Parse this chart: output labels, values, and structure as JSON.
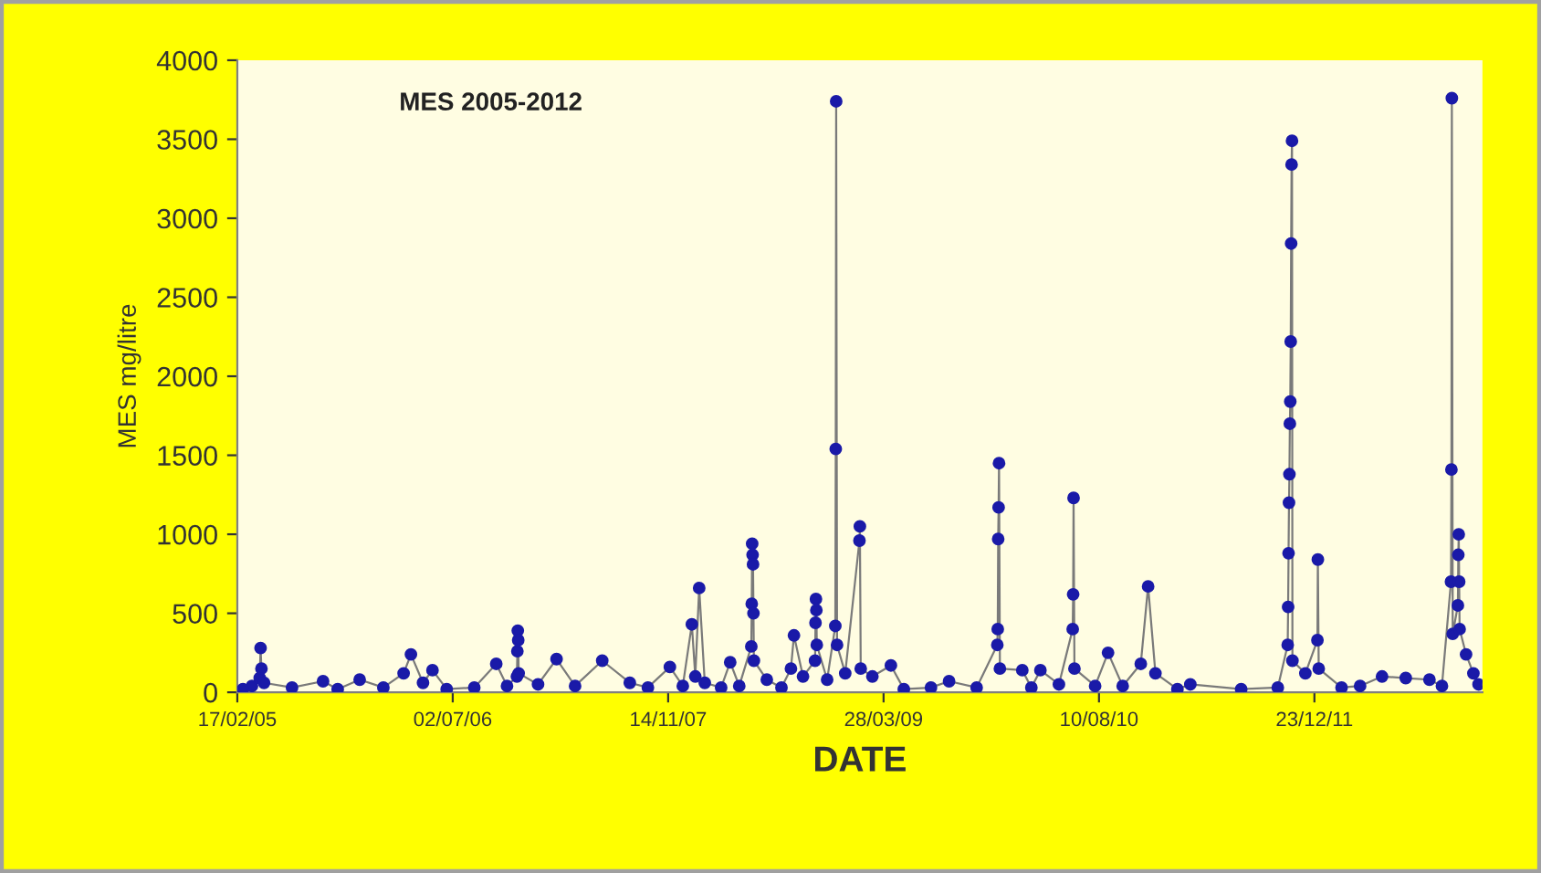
{
  "chart_data": {
    "type": "line",
    "title": "MES 2005-2012",
    "xlabel": "DATE",
    "ylabel": "MES mg/litre",
    "xlim": [
      "2005-02-17",
      "2013-01-16"
    ],
    "ylim": [
      0,
      4000
    ],
    "yticks": [
      0,
      500,
      1000,
      1500,
      2000,
      2500,
      3000,
      3500,
      4000
    ],
    "xticks": [
      {
        "value": "2005-02-17",
        "label": "17/02/05"
      },
      {
        "value": "2006-07-02",
        "label": "02/07/06"
      },
      {
        "value": "2007-11-14",
        "label": "14/11/07"
      },
      {
        "value": "2009-03-28",
        "label": "28/03/09"
      },
      {
        "value": "2010-08-10",
        "label": "10/08/10"
      },
      {
        "value": "2011-12-23",
        "label": "23/12/11"
      }
    ],
    "grid": false,
    "marker": "circle",
    "line_style": "solid",
    "legend": false,
    "series": [
      {
        "color": "#1a1aa8",
        "x": [
          "2005-03-02",
          "2005-03-23",
          "2005-04-10",
          "2005-04-12",
          "2005-04-14",
          "2005-04-20",
          "2005-06-24",
          "2005-09-04",
          "2005-10-08",
          "2005-11-28",
          "2006-01-22",
          "2006-03-10",
          "2006-03-27",
          "2006-04-24",
          "2006-05-16",
          "2006-06-18",
          "2006-08-21",
          "2006-10-11",
          "2006-11-05",
          "2006-11-28",
          "2006-11-29",
          "2006-11-30",
          "2006-12-01",
          "2006-12-02",
          "2007-01-16",
          "2007-02-28",
          "2007-04-12",
          "2007-06-14",
          "2007-08-17",
          "2007-09-28",
          "2007-11-18",
          "2007-12-18",
          "2008-01-08",
          "2008-01-16",
          "2008-01-25",
          "2008-02-07",
          "2008-03-16",
          "2008-04-06",
          "2008-04-27",
          "2008-05-25",
          "2008-05-26",
          "2008-05-27",
          "2008-05-28",
          "2008-05-29",
          "2008-05-30",
          "2008-05-31",
          "2008-06-30",
          "2008-08-03",
          "2008-08-25",
          "2008-09-01",
          "2008-09-22",
          "2008-10-20",
          "2008-10-21",
          "2008-10-22",
          "2008-10-23",
          "2008-10-24",
          "2008-11-17",
          "2008-12-06",
          "2008-12-07",
          "2008-12-08",
          "2008-12-10",
          "2008-12-29",
          "2009-01-31",
          "2009-02-01",
          "2009-02-03",
          "2009-03-02",
          "2009-04-14",
          "2009-05-14",
          "2009-07-16",
          "2009-08-27",
          "2009-10-30",
          "2009-12-17",
          "2009-12-18",
          "2009-12-19",
          "2009-12-20",
          "2009-12-21",
          "2009-12-23",
          "2010-02-13",
          "2010-03-06",
          "2010-03-27",
          "2010-05-09",
          "2010-06-10",
          "2010-06-11",
          "2010-06-12",
          "2010-06-14",
          "2010-08-01",
          "2010-08-31",
          "2010-10-04",
          "2010-11-15",
          "2010-12-02",
          "2010-12-19",
          "2011-02-08",
          "2011-03-10",
          "2011-07-06",
          "2011-09-29",
          "2011-10-22",
          "2011-10-23",
          "2011-10-24",
          "2011-10-25",
          "2011-10-26",
          "2011-10-27",
          "2011-10-28",
          "2011-10-29",
          "2011-10-30",
          "2011-10-31",
          "2011-11-01",
          "2011-11-02",
          "2011-12-02",
          "2011-12-30",
          "2011-12-31",
          "2012-01-02",
          "2012-02-24",
          "2012-04-07",
          "2012-05-28",
          "2012-07-22",
          "2012-09-15",
          "2012-10-14",
          "2012-11-04",
          "2012-11-05",
          "2012-11-06",
          "2012-11-08",
          "2012-11-20",
          "2012-11-21",
          "2012-11-22",
          "2012-11-23",
          "2012-11-24",
          "2012-12-09",
          "2012-12-26",
          "2013-01-07"
        ],
        "values": [
          20,
          40,
          90,
          280,
          150,
          60,
          30,
          70,
          20,
          80,
          30,
          120,
          240,
          60,
          140,
          20,
          30,
          180,
          40,
          100,
          260,
          390,
          330,
          120,
          50,
          210,
          40,
          200,
          60,
          30,
          160,
          40,
          430,
          100,
          660,
          60,
          30,
          190,
          40,
          290,
          560,
          940,
          870,
          810,
          500,
          200,
          80,
          30,
          150,
          360,
          100,
          200,
          440,
          590,
          520,
          300,
          80,
          420,
          1540,
          3740,
          300,
          120,
          960,
          1050,
          150,
          100,
          170,
          20,
          30,
          70,
          30,
          300,
          400,
          970,
          1170,
          1450,
          150,
          140,
          30,
          140,
          50,
          400,
          620,
          1230,
          150,
          40,
          250,
          40,
          180,
          670,
          120,
          20,
          50,
          20,
          30,
          300,
          540,
          880,
          1200,
          1380,
          1700,
          1840,
          2220,
          2840,
          3340,
          3490,
          200,
          120,
          330,
          840,
          150,
          30,
          40,
          100,
          90,
          80,
          40,
          700,
          1410,
          3760,
          370,
          550,
          870,
          1000,
          700,
          400,
          240,
          120,
          50
        ]
      }
    ]
  }
}
